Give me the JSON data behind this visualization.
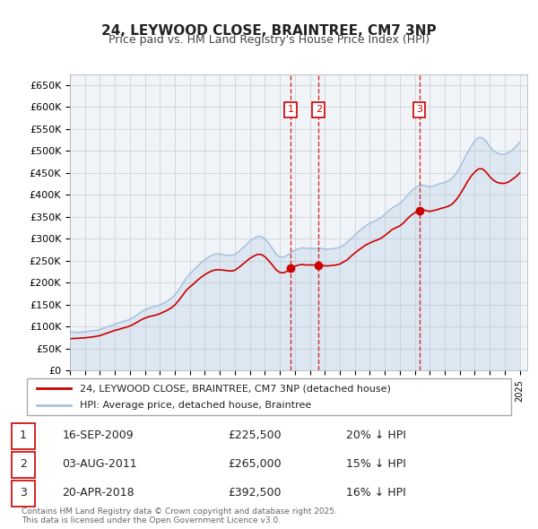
{
  "title": "24, LEYWOOD CLOSE, BRAINTREE, CM7 3NP",
  "subtitle": "Price paid vs. HM Land Registry's House Price Index (HPI)",
  "ylabel": "",
  "ylim": [
    0,
    675000
  ],
  "yticks": [
    0,
    50000,
    100000,
    150000,
    200000,
    250000,
    300000,
    350000,
    400000,
    450000,
    500000,
    550000,
    600000,
    650000
  ],
  "xlim_start": 1995.0,
  "xlim_end": 2025.5,
  "background_color": "#ffffff",
  "grid_color": "#cccccc",
  "hpi_color": "#a8c4e0",
  "price_color": "#cc0000",
  "transactions": [
    {
      "num": 1,
      "date": "16-SEP-2009",
      "price": 225500,
      "pct": "20%",
      "x": 2009.71
    },
    {
      "num": 2,
      "date": "03-AUG-2011",
      "price": 265000,
      "pct": "15%",
      "x": 2011.58
    },
    {
      "num": 3,
      "date": "20-APR-2018",
      "price": 392500,
      "pct": "16%",
      "x": 2018.3
    }
  ],
  "legend_line1": "24, LEYWOOD CLOSE, BRAINTREE, CM7 3NP (detached house)",
  "legend_line2": "HPI: Average price, detached house, Braintree",
  "footnote": "Contains HM Land Registry data © Crown copyright and database right 2025.\nThis data is licensed under the Open Government Licence v3.0.",
  "hpi_data_x": [
    1995.0,
    1995.25,
    1995.5,
    1995.75,
    1996.0,
    1996.25,
    1996.5,
    1996.75,
    1997.0,
    1997.25,
    1997.5,
    1997.75,
    1998.0,
    1998.25,
    1998.5,
    1998.75,
    1999.0,
    1999.25,
    1999.5,
    1999.75,
    2000.0,
    2000.25,
    2000.5,
    2000.75,
    2001.0,
    2001.25,
    2001.5,
    2001.75,
    2002.0,
    2002.25,
    2002.5,
    2002.75,
    2003.0,
    2003.25,
    2003.5,
    2003.75,
    2004.0,
    2004.25,
    2004.5,
    2004.75,
    2005.0,
    2005.25,
    2005.5,
    2005.75,
    2006.0,
    2006.25,
    2006.5,
    2006.75,
    2007.0,
    2007.25,
    2007.5,
    2007.75,
    2008.0,
    2008.25,
    2008.5,
    2008.75,
    2009.0,
    2009.25,
    2009.5,
    2009.75,
    2010.0,
    2010.25,
    2010.5,
    2010.75,
    2011.0,
    2011.25,
    2011.5,
    2011.75,
    2012.0,
    2012.25,
    2012.5,
    2012.75,
    2013.0,
    2013.25,
    2013.5,
    2013.75,
    2014.0,
    2014.25,
    2014.5,
    2014.75,
    2015.0,
    2015.25,
    2015.5,
    2015.75,
    2016.0,
    2016.25,
    2016.5,
    2016.75,
    2017.0,
    2017.25,
    2017.5,
    2017.75,
    2018.0,
    2018.25,
    2018.5,
    2018.75,
    2019.0,
    2019.25,
    2019.5,
    2019.75,
    2020.0,
    2020.25,
    2020.5,
    2020.75,
    2021.0,
    2021.25,
    2021.5,
    2021.75,
    2022.0,
    2022.25,
    2022.5,
    2022.75,
    2023.0,
    2023.25,
    2023.5,
    2023.75,
    2024.0,
    2024.25,
    2024.5,
    2024.75,
    2025.0
  ],
  "hpi_data_y": [
    88000,
    87000,
    86000,
    87000,
    88000,
    89000,
    90000,
    91000,
    93000,
    96000,
    99000,
    102000,
    105000,
    108000,
    111000,
    113000,
    116000,
    121000,
    127000,
    133000,
    138000,
    141000,
    144000,
    146000,
    149000,
    153000,
    158000,
    164000,
    172000,
    183000,
    196000,
    210000,
    220000,
    228000,
    237000,
    245000,
    252000,
    258000,
    263000,
    265000,
    265000,
    263000,
    262000,
    262000,
    264000,
    270000,
    278000,
    286000,
    294000,
    300000,
    305000,
    305000,
    300000,
    290000,
    278000,
    265000,
    258000,
    258000,
    262000,
    268000,
    274000,
    277000,
    279000,
    278000,
    278000,
    277000,
    278000,
    278000,
    276000,
    276000,
    277000,
    278000,
    280000,
    285000,
    292000,
    300000,
    308000,
    316000,
    323000,
    330000,
    335000,
    339000,
    343000,
    348000,
    355000,
    363000,
    370000,
    375000,
    380000,
    388000,
    398000,
    408000,
    415000,
    420000,
    422000,
    420000,
    418000,
    420000,
    423000,
    426000,
    428000,
    432000,
    438000,
    448000,
    462000,
    478000,
    495000,
    510000,
    522000,
    530000,
    530000,
    522000,
    510000,
    500000,
    495000,
    492000,
    492000,
    496000,
    502000,
    510000,
    520000
  ],
  "price_data_x": [
    1995.0,
    1995.25,
    1995.5,
    1995.75,
    1996.0,
    1996.25,
    1996.5,
    1996.75,
    1997.0,
    1997.25,
    1997.5,
    1997.75,
    1998.0,
    1998.25,
    1998.5,
    1998.75,
    1999.0,
    1999.25,
    1999.5,
    1999.75,
    2000.0,
    2000.25,
    2000.5,
    2000.75,
    2001.0,
    2001.25,
    2001.5,
    2001.75,
    2002.0,
    2002.25,
    2002.5,
    2002.75,
    2003.0,
    2003.25,
    2003.5,
    2003.75,
    2004.0,
    2004.25,
    2004.5,
    2004.75,
    2005.0,
    2005.25,
    2005.5,
    2005.75,
    2006.0,
    2006.25,
    2006.5,
    2006.75,
    2007.0,
    2007.25,
    2007.5,
    2007.75,
    2008.0,
    2008.25,
    2008.5,
    2008.75,
    2009.0,
    2009.25,
    2009.5,
    2009.75,
    2010.0,
    2010.25,
    2010.5,
    2010.75,
    2011.0,
    2011.25,
    2011.5,
    2011.75,
    2012.0,
    2012.25,
    2012.5,
    2012.75,
    2013.0,
    2013.25,
    2013.5,
    2013.75,
    2014.0,
    2014.25,
    2014.5,
    2014.75,
    2015.0,
    2015.25,
    2015.5,
    2015.75,
    2016.0,
    2016.25,
    2016.5,
    2016.75,
    2017.0,
    2017.25,
    2017.5,
    2017.75,
    2018.0,
    2018.25,
    2018.5,
    2018.75,
    2019.0,
    2019.25,
    2019.5,
    2019.75,
    2020.0,
    2020.25,
    2020.5,
    2020.75,
    2021.0,
    2021.25,
    2021.5,
    2021.75,
    2022.0,
    2022.25,
    2022.5,
    2022.75,
    2023.0,
    2023.25,
    2023.5,
    2023.75,
    2024.0,
    2024.25,
    2024.5,
    2024.75,
    2025.0
  ],
  "price_data_y": [
    72000,
    72500,
    73000,
    73500,
    74000,
    75000,
    76000,
    77500,
    79000,
    82000,
    85000,
    88000,
    91000,
    93000,
    96000,
    98000,
    101000,
    105000,
    110000,
    115000,
    119000,
    122000,
    124000,
    126000,
    129000,
    133000,
    137000,
    142000,
    149000,
    159000,
    170000,
    182000,
    190000,
    197000,
    205000,
    212000,
    218000,
    223000,
    227000,
    229000,
    229000,
    228000,
    227000,
    226000,
    228000,
    234000,
    241000,
    248000,
    255000,
    260000,
    264000,
    264000,
    259000,
    250000,
    240000,
    229000,
    223000,
    222000,
    226000,
    232000,
    237000,
    240000,
    241000,
    240000,
    240000,
    240000,
    240000,
    240000,
    238000,
    238000,
    239000,
    240000,
    242000,
    247000,
    252000,
    260000,
    267000,
    274000,
    280000,
    286000,
    290000,
    294000,
    297000,
    301000,
    307000,
    314000,
    321000,
    325000,
    329000,
    336000,
    345000,
    353000,
    359000,
    364000,
    366000,
    364000,
    362000,
    364000,
    366000,
    369000,
    371000,
    374000,
    379000,
    388000,
    400000,
    414000,
    429000,
    442000,
    452000,
    459000,
    459000,
    452000,
    441000,
    433000,
    428000,
    426000,
    426000,
    429000,
    435000,
    441000,
    450000
  ]
}
